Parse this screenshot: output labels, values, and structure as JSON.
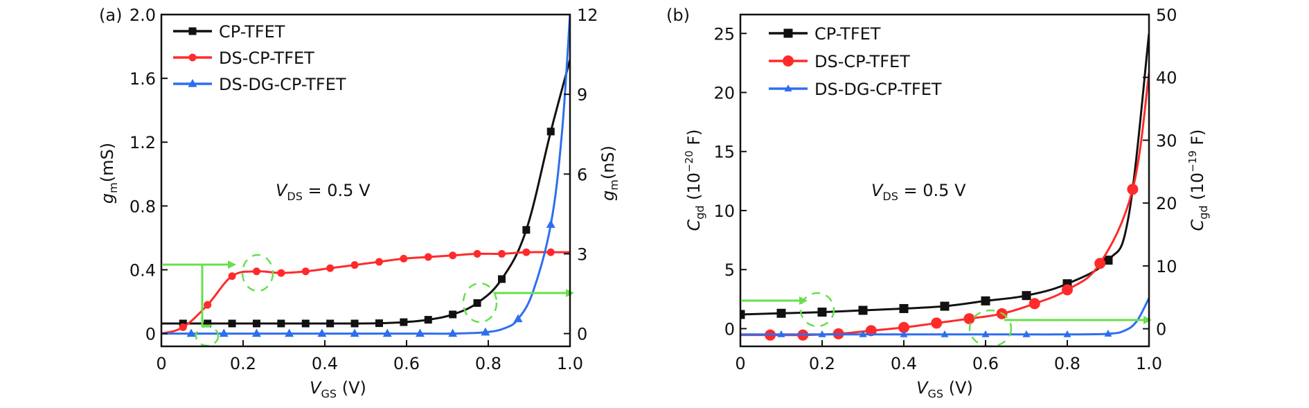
{
  "chart_data": [
    {
      "type": "line",
      "panel_label": "(a)",
      "xlabel_main": "V",
      "xlabel_sub": "GS",
      "xlabel_unit": " (V)",
      "ylabel_left_main": "g",
      "ylabel_left_sub": "m",
      "ylabel_left_unit": "(mS)",
      "ylabel_right_main": "g",
      "ylabel_right_sub": "m",
      "ylabel_right_unit": "(nS)",
      "xlim": [
        0,
        1.0
      ],
      "ylim_left": [
        -0.08,
        2.0
      ],
      "ylim_right": [
        -0.48,
        12
      ],
      "x_ticks": [
        0,
        0.2,
        0.4,
        0.6,
        0.8,
        1.0
      ],
      "x_tick_labels": [
        "0",
        "0.2",
        "0.4",
        "0.6",
        "0.8",
        "1.0"
      ],
      "y_left_ticks": [
        0,
        0.4,
        0.8,
        1.2,
        1.6,
        2.0
      ],
      "y_left_tick_labels": [
        "0",
        "0.4",
        "0.8",
        "1.2",
        "1.6",
        "2.0"
      ],
      "y_right_ticks": [
        0,
        3,
        6,
        9,
        12
      ],
      "y_right_tick_labels": [
        "0",
        "3",
        "6",
        "9",
        "12"
      ],
      "annotation": {
        "main": "V",
        "sub": "DS",
        "rest": " = 0.5 V"
      },
      "legend_position": "top-left",
      "grid": false,
      "series": [
        {
          "name": "CP-TFET",
          "axis": "right",
          "color": "#111111",
          "marker": "square",
          "x": [
            0,
            0.053,
            0.113,
            0.173,
            0.233,
            0.293,
            0.353,
            0.413,
            0.473,
            0.533,
            0.593,
            0.653,
            0.713,
            0.773,
            0.833,
            0.893,
            0.953,
            1.0
          ],
          "y": [
            0.38,
            0.38,
            0.38,
            0.38,
            0.38,
            0.38,
            0.38,
            0.38,
            0.38,
            0.39,
            0.43,
            0.52,
            0.72,
            1.15,
            2.05,
            3.9,
            7.6,
            10.3
          ],
          "marker_x": [
            0.053,
            0.113,
            0.173,
            0.233,
            0.293,
            0.353,
            0.413,
            0.473,
            0.533,
            0.593,
            0.653,
            0.713,
            0.773,
            0.833,
            0.893,
            0.953
          ]
        },
        {
          "name": "DS-CP-TFET",
          "axis": "left",
          "color": "#ff2a2a",
          "marker": "circle",
          "x": [
            0,
            0.053,
            0.113,
            0.173,
            0.233,
            0.293,
            0.353,
            0.413,
            0.473,
            0.533,
            0.593,
            0.653,
            0.713,
            0.773,
            0.833,
            0.893,
            0.953,
            1.0
          ],
          "y": [
            0.0,
            0.04,
            0.18,
            0.36,
            0.39,
            0.38,
            0.39,
            0.41,
            0.43,
            0.45,
            0.47,
            0.48,
            0.49,
            0.5,
            0.5,
            0.51,
            0.51,
            0.51
          ],
          "marker_x": [
            0.053,
            0.113,
            0.173,
            0.233,
            0.293,
            0.353,
            0.413,
            0.473,
            0.533,
            0.593,
            0.653,
            0.713,
            0.773,
            0.833,
            0.893,
            0.953
          ]
        },
        {
          "name": "DS-DG-CP-TFET",
          "axis": "right",
          "color": "#2d6ef0",
          "marker": "triangle",
          "x": [
            0,
            0.073,
            0.153,
            0.233,
            0.313,
            0.393,
            0.473,
            0.553,
            0.633,
            0.713,
            0.793,
            0.84,
            0.873,
            0.91,
            0.953,
            0.98,
            1.0
          ],
          "y": [
            0,
            0,
            0,
            0,
            0,
            0,
            0,
            0,
            0,
            0,
            0.05,
            0.2,
            0.55,
            1.6,
            4.1,
            7.5,
            12
          ],
          "marker_x": [
            0.073,
            0.153,
            0.233,
            0.313,
            0.393,
            0.473,
            0.553,
            0.633,
            0.713,
            0.793,
            0.873,
            0.953
          ]
        }
      ]
    },
    {
      "type": "line",
      "panel_label": "(b)",
      "xlabel_main": "V",
      "xlabel_sub": "GS",
      "xlabel_unit": " (V)",
      "ylabel_left_main": "C",
      "ylabel_left_sub": "gd",
      "ylabel_left_unit": " (10",
      "ylabel_left_exp": "−20",
      "ylabel_left_tail": " F)",
      "ylabel_right_main": "C",
      "ylabel_right_sub": "gd",
      "ylabel_right_unit": " (10",
      "ylabel_right_exp": "−19",
      "ylabel_right_tail": " F)",
      "xlim": [
        0,
        1.0
      ],
      "ylim_left": [
        -1.5,
        26.6
      ],
      "ylim_right": [
        -2.8,
        50
      ],
      "x_ticks": [
        0,
        0.2,
        0.4,
        0.6,
        0.8,
        1.0
      ],
      "x_tick_labels": [
        "0",
        "0.2",
        "0.4",
        "0.6",
        "0.8",
        "1.0"
      ],
      "y_left_ticks": [
        0,
        5,
        10,
        15,
        20,
        25
      ],
      "y_left_tick_labels": [
        "0",
        "5",
        "10",
        "15",
        "20",
        "25"
      ],
      "y_right_ticks": [
        0,
        10,
        20,
        30,
        40,
        50
      ],
      "y_right_tick_labels": [
        "0",
        "10",
        "20",
        "30",
        "40",
        "50"
      ],
      "annotation": {
        "main": "V",
        "sub": "DS",
        "rest": " = 0.5 V"
      },
      "legend_position": "top-left",
      "grid": false,
      "series": [
        {
          "name": "CP-TFET",
          "axis": "left",
          "color": "#111111",
          "marker": "square",
          "x": [
            0,
            0.1,
            0.2,
            0.3,
            0.4,
            0.5,
            0.6,
            0.7,
            0.8,
            0.9,
            0.95,
            1.0
          ],
          "y": [
            1.2,
            1.3,
            1.4,
            1.55,
            1.7,
            1.9,
            2.35,
            2.8,
            3.8,
            5.8,
            9.5,
            25
          ],
          "marker_x": [
            0,
            0.1,
            0.2,
            0.3,
            0.4,
            0.5,
            0.6,
            0.7,
            0.8,
            0.9
          ]
        },
        {
          "name": "DS-CP-TFET",
          "axis": "right",
          "color": "#ff2a2a",
          "marker": "circle",
          "x": [
            0,
            0.073,
            0.153,
            0.24,
            0.32,
            0.4,
            0.48,
            0.56,
            0.64,
            0.72,
            0.8,
            0.88,
            0.96,
            1.0
          ],
          "y": [
            -1.0,
            -1.0,
            -1.0,
            -0.8,
            -0.3,
            0.2,
            0.9,
            1.6,
            2.4,
            4.0,
            6.2,
            10.4,
            22.2,
            40.7
          ],
          "marker_x": [
            0.073,
            0.153,
            0.24,
            0.32,
            0.4,
            0.48,
            0.56,
            0.64,
            0.72,
            0.8,
            0.88,
            0.96
          ]
        },
        {
          "name": "DS-DG-CP-TFET",
          "axis": "right",
          "color": "#2d6ef0",
          "marker": "triangle",
          "x": [
            0,
            0.1,
            0.2,
            0.3,
            0.4,
            0.5,
            0.6,
            0.7,
            0.8,
            0.9,
            0.94,
            0.97,
            1.0
          ],
          "y": [
            -0.9,
            -0.9,
            -0.9,
            -0.9,
            -0.9,
            -0.9,
            -0.9,
            -0.9,
            -0.9,
            -0.8,
            -0.3,
            1.2,
            4.9
          ],
          "marker_x": [
            0.1,
            0.2,
            0.3,
            0.4,
            0.5,
            0.6,
            0.7,
            0.8,
            0.9
          ]
        }
      ]
    }
  ]
}
